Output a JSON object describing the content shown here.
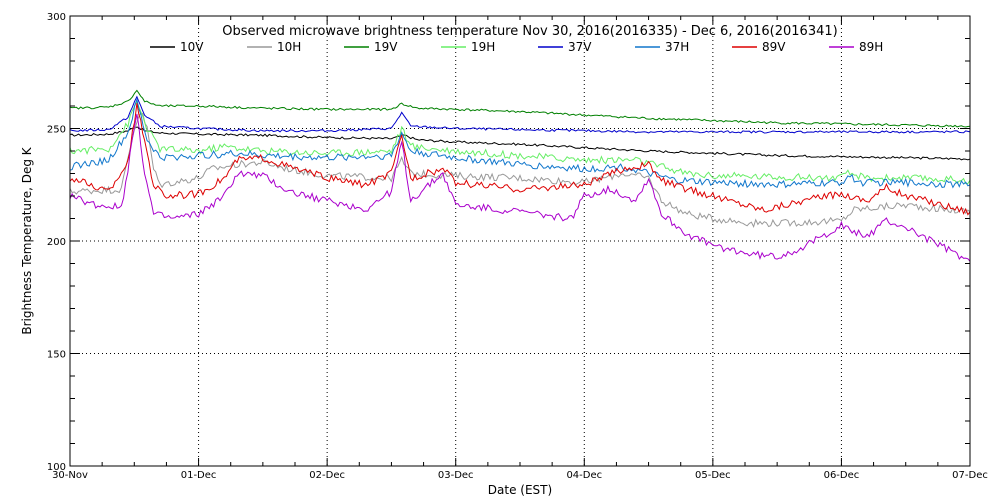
{
  "chart_data": {
    "type": "line",
    "title": "Observed microwave brightness temperature Nov 30, 2016(2016335) - Dec  6, 2016(2016341)",
    "xlabel": "Date (EST)",
    "ylabel": "Brightness Temperature, Deg K",
    "xlim": [
      0,
      7
    ],
    "ylim": [
      100,
      300
    ],
    "x_tick_labels": [
      "30-Nov",
      "01-Dec",
      "02-Dec",
      "03-Dec",
      "04-Dec",
      "05-Dec",
      "06-Dec",
      "07-Dec"
    ],
    "y_ticks": [
      100,
      150,
      200,
      250,
      300
    ],
    "x_unit_note": "x values are days since 30-Nov 00:00 (EST)",
    "grid": true,
    "legend_position": "top",
    "series": [
      {
        "name": "10V",
        "color": "#000000",
        "points": [
          [
            0,
            247
          ],
          [
            0.3,
            247.5
          ],
          [
            0.45,
            249
          ],
          [
            0.52,
            251
          ],
          [
            0.58,
            249
          ],
          [
            0.7,
            248
          ],
          [
            1,
            247.5
          ],
          [
            1.5,
            247
          ],
          [
            2,
            246
          ],
          [
            2.5,
            245.5
          ],
          [
            2.6,
            247
          ],
          [
            2.7,
            245
          ],
          [
            3,
            244
          ],
          [
            3.5,
            243
          ],
          [
            4,
            241.5
          ],
          [
            4.5,
            240
          ],
          [
            5,
            239
          ],
          [
            5.5,
            238
          ],
          [
            6,
            237.5
          ],
          [
            6.5,
            237
          ],
          [
            7,
            236.5
          ]
        ]
      },
      {
        "name": "10H",
        "color": "#999999",
        "points": [
          [
            0,
            222
          ],
          [
            0.4,
            223
          ],
          [
            0.5,
            250
          ],
          [
            0.55,
            258
          ],
          [
            0.6,
            250
          ],
          [
            0.65,
            232
          ],
          [
            0.7,
            225
          ],
          [
            1,
            228
          ],
          [
            1.1,
            232
          ],
          [
            1.3,
            234
          ],
          [
            1.5,
            235
          ],
          [
            1.7,
            232
          ],
          [
            2,
            229
          ],
          [
            2.5,
            228
          ],
          [
            2.58,
            236
          ],
          [
            2.65,
            230
          ],
          [
            3,
            229
          ],
          [
            3.5,
            228
          ],
          [
            4,
            226
          ],
          [
            4.3,
            230
          ],
          [
            4.5,
            228
          ],
          [
            4.6,
            218
          ],
          [
            4.8,
            212
          ],
          [
            5,
            210
          ],
          [
            5.3,
            208
          ],
          [
            5.6,
            208
          ],
          [
            6,
            209
          ],
          [
            6.1,
            214
          ],
          [
            6.3,
            215
          ],
          [
            6.5,
            216
          ],
          [
            6.8,
            214
          ],
          [
            7,
            213
          ]
        ]
      },
      {
        "name": "19V",
        "color": "#008000",
        "points": [
          [
            0,
            259
          ],
          [
            0.3,
            259.5
          ],
          [
            0.45,
            262
          ],
          [
            0.52,
            267
          ],
          [
            0.58,
            262
          ],
          [
            0.7,
            260
          ],
          [
            1,
            260
          ],
          [
            1.5,
            259
          ],
          [
            2,
            258.5
          ],
          [
            2.5,
            258.5
          ],
          [
            2.58,
            261
          ],
          [
            2.7,
            259
          ],
          [
            3,
            258.5
          ],
          [
            3.5,
            257.5
          ],
          [
            4,
            256
          ],
          [
            4.5,
            254.5
          ],
          [
            5,
            253.5
          ],
          [
            5.5,
            252.5
          ],
          [
            6,
            252
          ],
          [
            6.5,
            251.5
          ],
          [
            7,
            251
          ]
        ]
      },
      {
        "name": "19H",
        "color": "#66ee66",
        "points": [
          [
            0,
            240
          ],
          [
            0.3,
            241
          ],
          [
            0.45,
            252
          ],
          [
            0.52,
            262
          ],
          [
            0.6,
            250
          ],
          [
            0.7,
            241
          ],
          [
            1,
            240
          ],
          [
            1.2,
            242
          ],
          [
            1.5,
            240
          ],
          [
            2,
            239
          ],
          [
            2.5,
            240
          ],
          [
            2.58,
            250
          ],
          [
            2.65,
            242
          ],
          [
            3,
            240
          ],
          [
            3.5,
            238
          ],
          [
            4,
            236
          ],
          [
            4.4,
            236
          ],
          [
            4.6,
            233
          ],
          [
            4.8,
            230
          ],
          [
            5,
            229
          ],
          [
            5.5,
            228.5
          ],
          [
            6,
            228
          ],
          [
            6.05,
            230
          ],
          [
            6.2,
            228
          ],
          [
            6.5,
            228
          ],
          [
            7,
            227
          ]
        ]
      },
      {
        "name": "37V",
        "color": "#0000cc",
        "points": [
          [
            0,
            249
          ],
          [
            0.3,
            249.5
          ],
          [
            0.45,
            255
          ],
          [
            0.52,
            264
          ],
          [
            0.58,
            256
          ],
          [
            0.7,
            251
          ],
          [
            1,
            250
          ],
          [
            1.5,
            249
          ],
          [
            2,
            249
          ],
          [
            2.5,
            250
          ],
          [
            2.58,
            257
          ],
          [
            2.65,
            251
          ],
          [
            3,
            250
          ],
          [
            3.5,
            249.5
          ],
          [
            4,
            249
          ],
          [
            4.5,
            248.5
          ],
          [
            5,
            248.5
          ],
          [
            5.5,
            248.5
          ],
          [
            6,
            248.5
          ],
          [
            6.5,
            248.5
          ],
          [
            7,
            248.5
          ]
        ]
      },
      {
        "name": "37H",
        "color": "#1177cc",
        "points": [
          [
            0,
            233
          ],
          [
            0.3,
            236
          ],
          [
            0.45,
            248
          ],
          [
            0.52,
            262
          ],
          [
            0.6,
            245
          ],
          [
            0.7,
            237
          ],
          [
            1,
            238
          ],
          [
            1.3,
            239
          ],
          [
            1.5,
            238
          ],
          [
            2,
            237
          ],
          [
            2.5,
            238
          ],
          [
            2.58,
            248
          ],
          [
            2.65,
            240
          ],
          [
            3,
            237
          ],
          [
            3.5,
            234
          ],
          [
            4,
            232
          ],
          [
            4.3,
            233
          ],
          [
            4.5,
            230
          ],
          [
            4.7,
            227
          ],
          [
            5,
            226
          ],
          [
            5.5,
            225
          ],
          [
            6,
            226
          ],
          [
            6.05,
            229
          ],
          [
            6.15,
            226
          ],
          [
            6.5,
            226
          ],
          [
            7,
            225
          ]
        ]
      },
      {
        "name": "89V",
        "color": "#dd0000",
        "points": [
          [
            0,
            228
          ],
          [
            0.3,
            222
          ],
          [
            0.45,
            235
          ],
          [
            0.52,
            260
          ],
          [
            0.58,
            245
          ],
          [
            0.65,
            225
          ],
          [
            0.75,
            220
          ],
          [
            1,
            221
          ],
          [
            1.2,
            228
          ],
          [
            1.3,
            236
          ],
          [
            1.5,
            237
          ],
          [
            1.7,
            233
          ],
          [
            2,
            228
          ],
          [
            2.3,
            225
          ],
          [
            2.5,
            230
          ],
          [
            2.58,
            247
          ],
          [
            2.65,
            228
          ],
          [
            2.9,
            232
          ],
          [
            3,
            226
          ],
          [
            3.5,
            223
          ],
          [
            4,
            225
          ],
          [
            4.3,
            232
          ],
          [
            4.5,
            234
          ],
          [
            4.6,
            227
          ],
          [
            4.8,
            223
          ],
          [
            5,
            220
          ],
          [
            5.2,
            217
          ],
          [
            5.4,
            214
          ],
          [
            5.7,
            218
          ],
          [
            6,
            221
          ],
          [
            6.2,
            218
          ],
          [
            6.35,
            224
          ],
          [
            6.5,
            220
          ],
          [
            6.8,
            216
          ],
          [
            7,
            213
          ]
        ]
      },
      {
        "name": "89H",
        "color": "#aa00cc",
        "points": [
          [
            0,
            220
          ],
          [
            0.2,
            216
          ],
          [
            0.4,
            215
          ],
          [
            0.45,
            232
          ],
          [
            0.52,
            258
          ],
          [
            0.58,
            230
          ],
          [
            0.65,
            212
          ],
          [
            0.8,
            210
          ],
          [
            1,
            212
          ],
          [
            1.2,
            220
          ],
          [
            1.3,
            230
          ],
          [
            1.5,
            229
          ],
          [
            1.7,
            222
          ],
          [
            2,
            218
          ],
          [
            2.3,
            214
          ],
          [
            2.5,
            222
          ],
          [
            2.58,
            244
          ],
          [
            2.65,
            218
          ],
          [
            2.9,
            230
          ],
          [
            3,
            216
          ],
          [
            3.5,
            213
          ],
          [
            3.9,
            210
          ],
          [
            4,
            220
          ],
          [
            4.2,
            223
          ],
          [
            4.4,
            218
          ],
          [
            4.5,
            228
          ],
          [
            4.6,
            212
          ],
          [
            4.8,
            203
          ],
          [
            5,
            198
          ],
          [
            5.3,
            194
          ],
          [
            5.5,
            193
          ],
          [
            5.7,
            197
          ],
          [
            6,
            207
          ],
          [
            6.05,
            205
          ],
          [
            6.2,
            202
          ],
          [
            6.35,
            209
          ],
          [
            6.5,
            206
          ],
          [
            6.8,
            197
          ],
          [
            7,
            191
          ]
        ]
      }
    ]
  }
}
